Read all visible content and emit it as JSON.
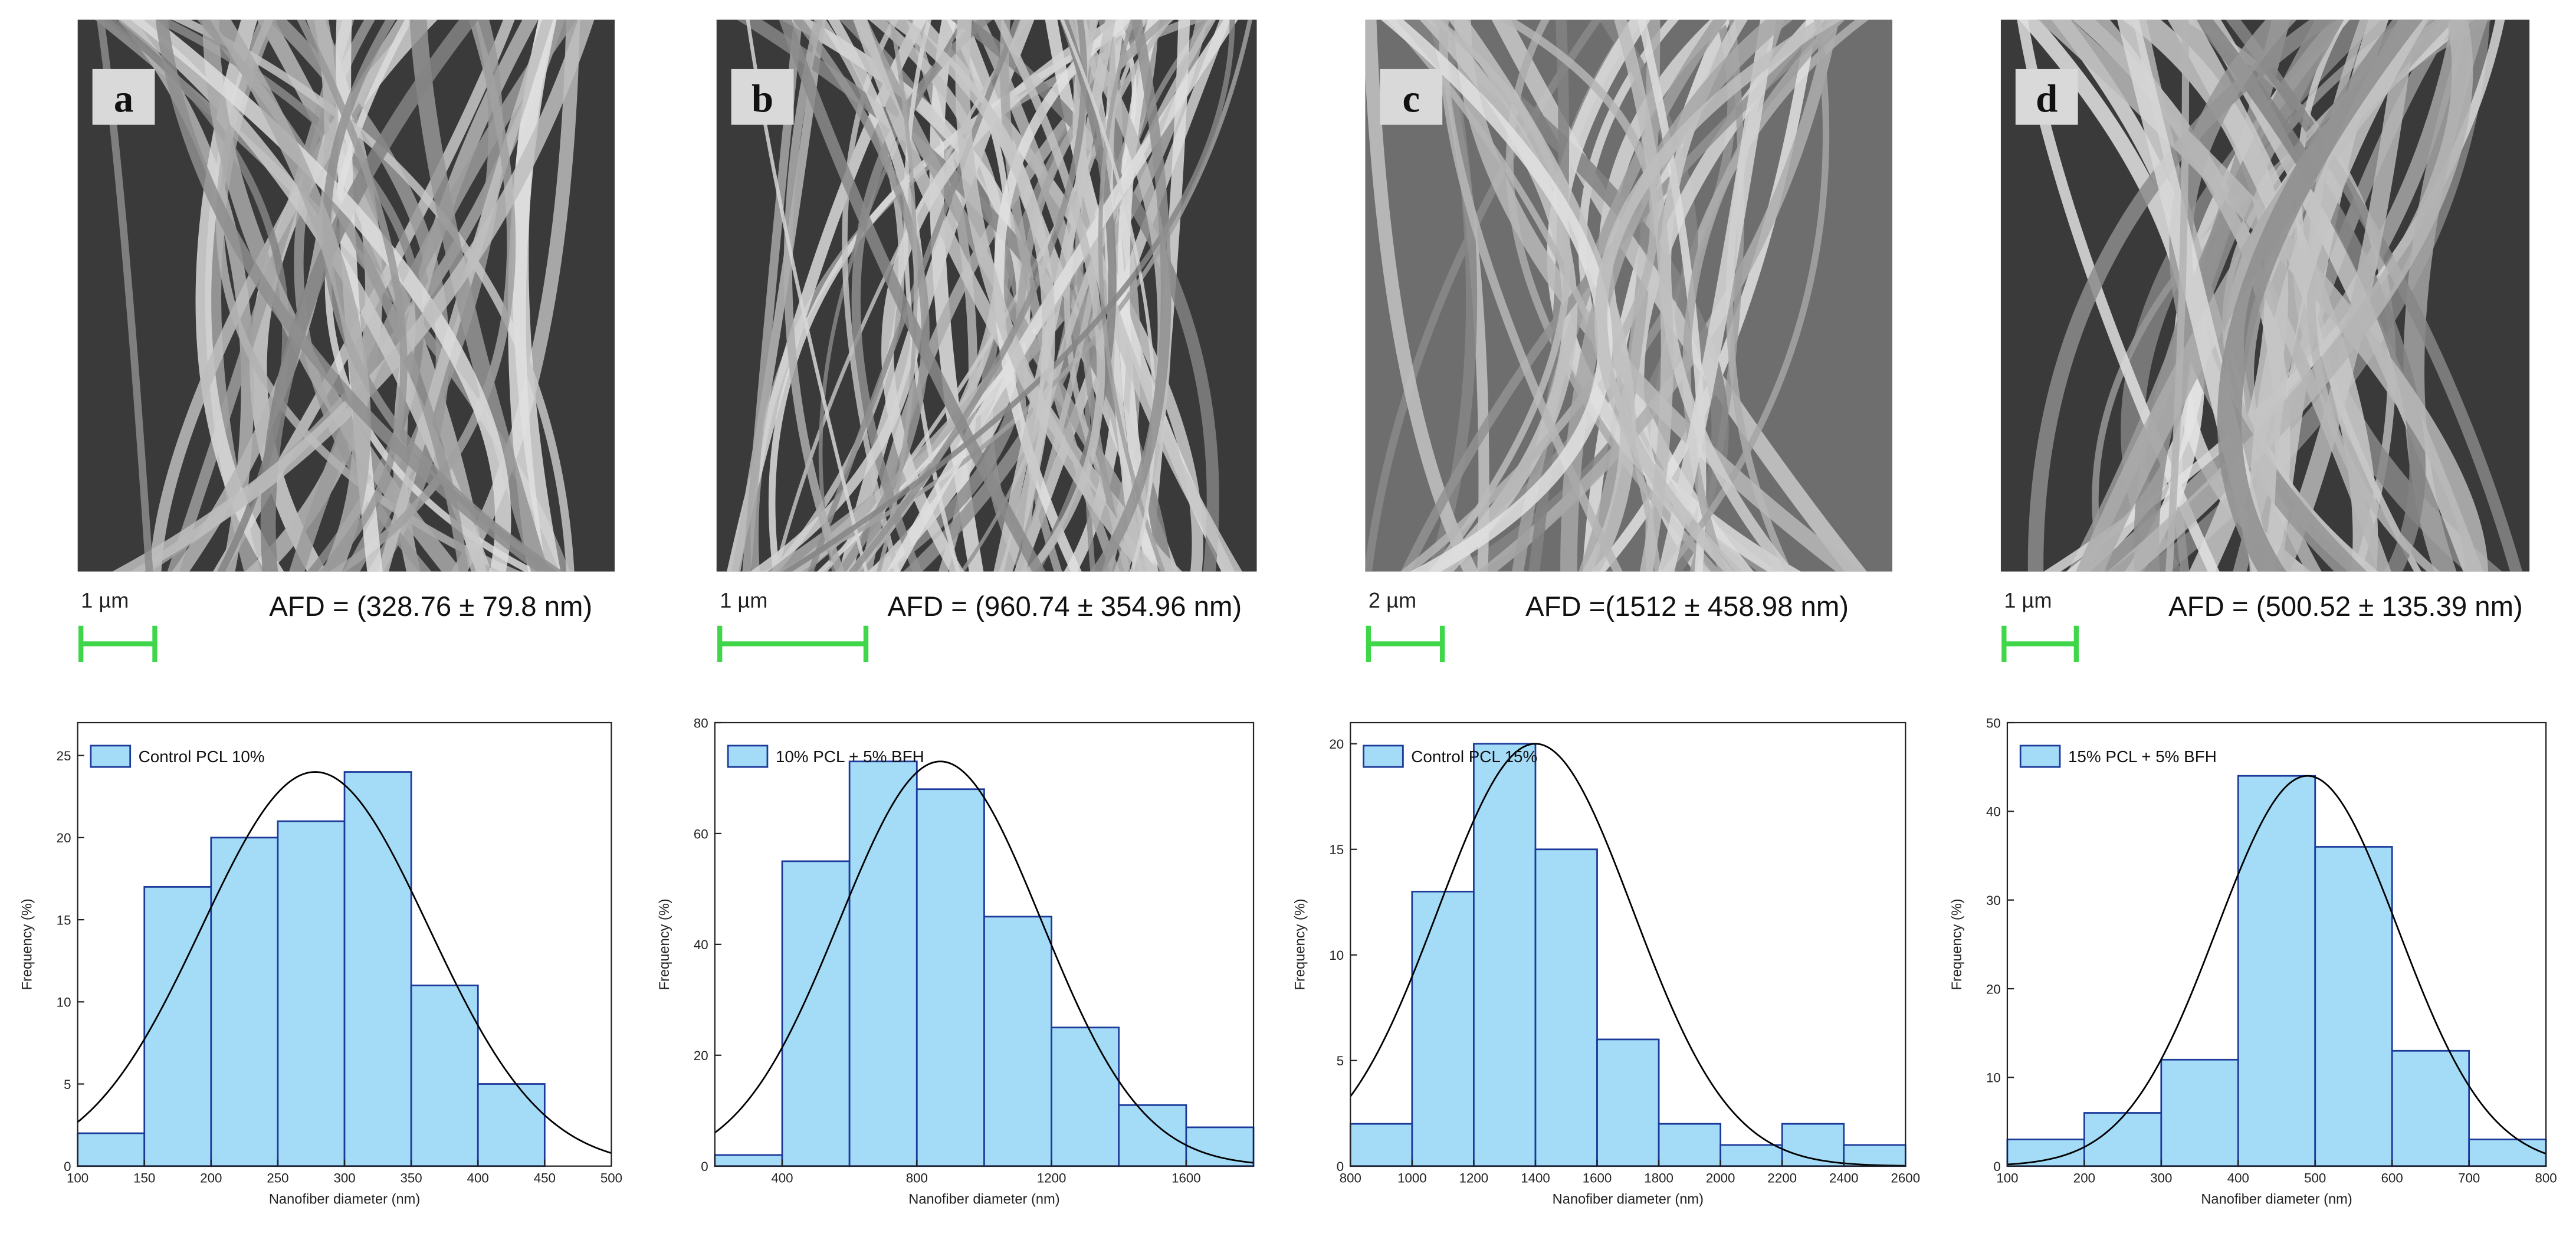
{
  "images": [
    {
      "label": "a",
      "scale_bar": "1 µm",
      "afd": "AFD = (328.76 ± 79.8 nm)"
    },
    {
      "label": "b",
      "scale_bar": "1 µm",
      "afd": "AFD = (960.74 ± 354.96 nm)"
    },
    {
      "label": "c",
      "scale_bar": "2 µm",
      "afd": "AFD =(1512 ± 458.98 nm)"
    },
    {
      "label": "d",
      "scale_bar": "1 µm",
      "afd": "AFD = (500.52 ± 135.39 nm)"
    }
  ],
  "chart_data": [
    {
      "type": "histogram",
      "name": "Control PCL 10%",
      "color": "#a4dcf8",
      "edge_color": "#1c3a9a",
      "xlabel": "Nanofiber diameter (nm)",
      "ylabel": "Frequency (%)",
      "bins": [
        100,
        150,
        200,
        250,
        300,
        350,
        400,
        450
      ],
      "values": [
        2,
        17,
        20,
        21,
        24,
        11,
        5
      ],
      "xlim": [
        100,
        500
      ],
      "ylim": [
        0,
        27
      ],
      "xticks": [
        100,
        150,
        200,
        250,
        300,
        350,
        400,
        450,
        500
      ],
      "yticks": [
        0,
        5,
        10,
        15,
        20,
        25
      ],
      "fit": {
        "mean": 278,
        "sd": 85,
        "peak": 24,
        "color": "#000000"
      }
    },
    {
      "type": "histogram",
      "name": "10% PCL + 5% BFH",
      "color": "#a4dcf8",
      "edge_color": "#1c3a9a",
      "xlabel": "Nanofiber diameter (nm)",
      "ylabel": "Frequency (%)",
      "bins": [
        200,
        400,
        600,
        800,
        1000,
        1200,
        1400,
        1600,
        1800
      ],
      "values": [
        2,
        55,
        73,
        68,
        45,
        25,
        11,
        7
      ],
      "xlim": [
        200,
        1800
      ],
      "ylim": [
        0,
        80
      ],
      "xticks": [
        400,
        800,
        1200,
        1600
      ],
      "yticks": [
        0,
        20,
        40,
        60,
        80
      ],
      "fit": {
        "mean": 870,
        "sd": 300,
        "peak": 73,
        "color": "#000000"
      }
    },
    {
      "type": "histogram",
      "name": "Control PCL 15%",
      "color": "#a4dcf8",
      "edge_color": "#1c3a9a",
      "xlabel": "Nanofiber diameter (nm)",
      "ylabel": "Frequency (%)",
      "bins": [
        800,
        1000,
        1200,
        1400,
        1600,
        1800,
        2000,
        2200,
        2400,
        2600
      ],
      "values": [
        2,
        13,
        20,
        15,
        6,
        2,
        1,
        2,
        1
      ],
      "xlim": [
        800,
        2600
      ],
      "ylim": [
        0,
        21
      ],
      "xticks": [
        800,
        1000,
        1200,
        1400,
        1600,
        1800,
        2000,
        2200,
        2400,
        2600
      ],
      "yticks": [
        0,
        5,
        10,
        15,
        20
      ],
      "fit": {
        "mean": 1400,
        "sd": 316,
        "peak": 20,
        "color": "#000000"
      }
    },
    {
      "type": "histogram",
      "name": "15% PCL + 5% BFH",
      "color": "#a4dcf8",
      "edge_color": "#1c3a9a",
      "xlabel": "Nanofiber diameter (nm)",
      "ylabel": "Frequency (%)",
      "bins": [
        100,
        200,
        300,
        400,
        500,
        600,
        700,
        800
      ],
      "values": [
        3,
        6,
        12,
        44,
        36,
        13,
        3
      ],
      "xlim": [
        100,
        800
      ],
      "ylim": [
        0,
        50
      ],
      "xticks": [
        100,
        200,
        300,
        400,
        500,
        600,
        700,
        800
      ],
      "yticks": [
        0,
        10,
        20,
        30,
        40,
        50
      ],
      "fit": {
        "mean": 490,
        "sd": 118,
        "peak": 44,
        "color": "#000000"
      }
    }
  ]
}
